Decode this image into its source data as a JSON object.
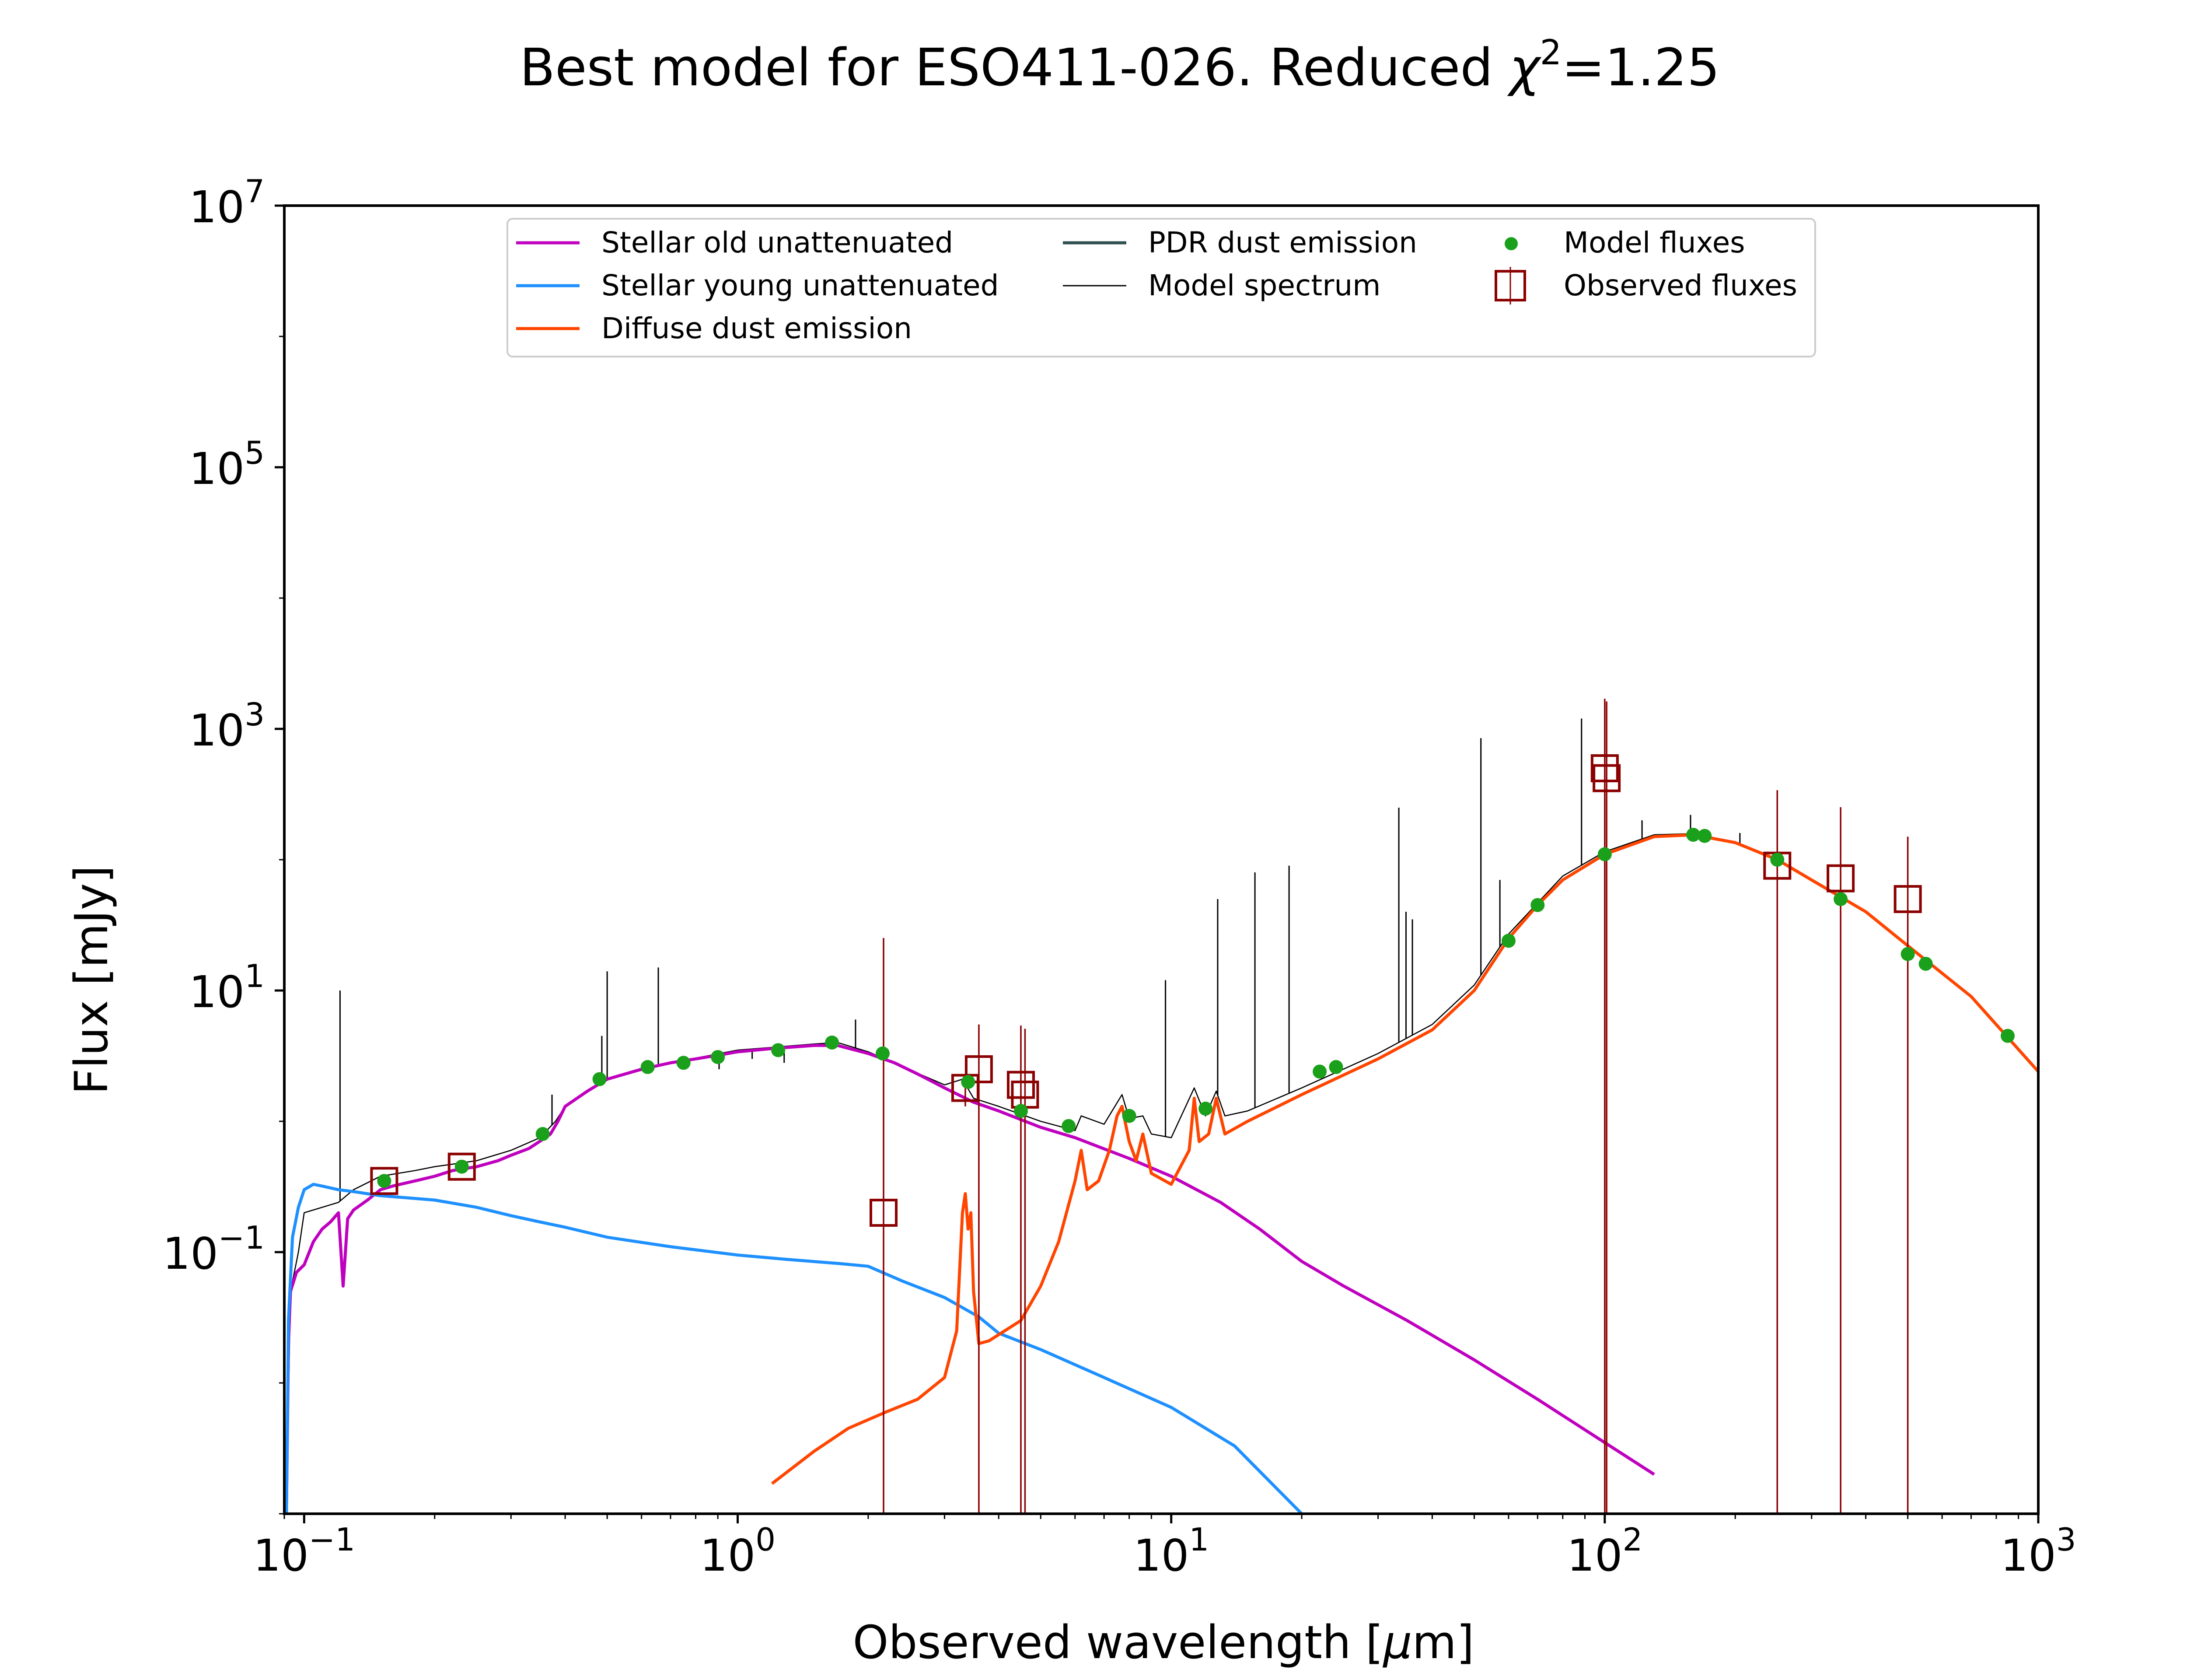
{
  "chart_data": {
    "type": "line",
    "title": "Best model for ESO411-026. Reduced χ²=1.25",
    "title_parts": {
      "prefix": "Best model for ESO411-026. Reduced ",
      "chi": "χ",
      "sup": "2",
      "suffix": "=1.25"
    },
    "xlabel": "Observed wavelength [μm]",
    "xlabel_parts": {
      "prefix": "Observed wavelength [",
      "mu": "μ",
      "suffix": "m]"
    },
    "ylabel": "Flux [mJy]",
    "x_scale": "log",
    "y_scale": "log",
    "xlim": [
      0.09,
      1000
    ],
    "ylim": [
      0.001,
      10000000
    ],
    "x_ticks": [
      {
        "value": 0.1,
        "base": "10",
        "exp": "−1"
      },
      {
        "value": 1,
        "base": "10",
        "exp": "0"
      },
      {
        "value": 10,
        "base": "10",
        "exp": "1"
      },
      {
        "value": 100,
        "base": "10",
        "exp": "2"
      },
      {
        "value": 1000,
        "base": "10",
        "exp": "3"
      }
    ],
    "y_ticks": [
      {
        "value": 0.1,
        "base": "10",
        "exp": "−1"
      },
      {
        "value": 10,
        "base": "10",
        "exp": "1"
      },
      {
        "value": 1000,
        "base": "10",
        "exp": "3"
      },
      {
        "value": 100000,
        "base": "10",
        "exp": "5"
      },
      {
        "value": 10000000,
        "base": "10",
        "exp": "7"
      }
    ],
    "grid": false,
    "legend_position": "top",
    "legend": [
      {
        "label": "Stellar old unattenuated",
        "color": "#bf00bf",
        "marker": "line"
      },
      {
        "label": "Stellar young unattenuated",
        "color": "#1e90ff",
        "marker": "line"
      },
      {
        "label": "Diffuse dust emission",
        "color": "#ff4500",
        "marker": "line"
      },
      {
        "label": "PDR dust emission",
        "color": "#2f4f4f",
        "marker": "line"
      },
      {
        "label": "Model spectrum",
        "color": "#000000",
        "marker": "thin-line"
      },
      {
        "label": "Model fluxes",
        "color": "#1aa01a",
        "marker": "dot"
      },
      {
        "label": "Observed fluxes",
        "color": "#8b0000",
        "marker": "square"
      }
    ],
    "series": [
      {
        "name": "Stellar old unattenuated",
        "color": "#bf00bf",
        "width": 7,
        "points": [
          [
            0.091,
            0.001
          ],
          [
            0.092,
            0.02
          ],
          [
            0.093,
            0.05
          ],
          [
            0.096,
            0.07
          ],
          [
            0.1,
            0.08
          ],
          [
            0.105,
            0.12
          ],
          [
            0.11,
            0.15
          ],
          [
            0.115,
            0.17
          ],
          [
            0.12,
            0.2
          ],
          [
            0.123,
            0.055
          ],
          [
            0.126,
            0.18
          ],
          [
            0.13,
            0.21
          ],
          [
            0.14,
            0.25
          ],
          [
            0.15,
            0.3
          ],
          [
            0.16,
            0.32
          ],
          [
            0.18,
            0.35
          ],
          [
            0.2,
            0.38
          ],
          [
            0.22,
            0.42
          ],
          [
            0.25,
            0.45
          ],
          [
            0.28,
            0.5
          ],
          [
            0.3,
            0.55
          ],
          [
            0.33,
            0.62
          ],
          [
            0.36,
            0.75
          ],
          [
            0.37,
            0.8
          ],
          [
            0.385,
            1.0
          ],
          [
            0.4,
            1.3
          ],
          [
            0.45,
            1.7
          ],
          [
            0.5,
            2.1
          ],
          [
            0.6,
            2.5
          ],
          [
            0.7,
            2.8
          ],
          [
            0.8,
            3.0
          ],
          [
            0.9,
            3.2
          ],
          [
            1.0,
            3.4
          ],
          [
            1.2,
            3.6
          ],
          [
            1.5,
            3.8
          ],
          [
            1.7,
            3.8
          ],
          [
            2.0,
            3.3
          ],
          [
            2.3,
            2.8
          ],
          [
            2.6,
            2.3
          ],
          [
            3.0,
            1.8
          ],
          [
            3.5,
            1.4
          ],
          [
            4.0,
            1.2
          ],
          [
            5.0,
            0.9
          ],
          [
            6.0,
            0.75
          ],
          [
            8.0,
            0.52
          ],
          [
            10.0,
            0.38
          ],
          [
            13.0,
            0.24
          ],
          [
            16.0,
            0.15
          ],
          [
            20.0,
            0.085
          ],
          [
            25.0,
            0.055
          ],
          [
            35.0,
            0.03
          ],
          [
            50.0,
            0.015
          ],
          [
            70.0,
            0.0075
          ],
          [
            100.0,
            0.0035
          ],
          [
            130.0,
            0.002
          ]
        ]
      },
      {
        "name": "Stellar young unattenuated",
        "color": "#1e90ff",
        "width": 7,
        "points": [
          [
            0.091,
            0.001
          ],
          [
            0.092,
            0.03
          ],
          [
            0.094,
            0.13
          ],
          [
            0.097,
            0.22
          ],
          [
            0.1,
            0.3
          ],
          [
            0.105,
            0.33
          ],
          [
            0.11,
            0.32
          ],
          [
            0.12,
            0.3
          ],
          [
            0.13,
            0.29
          ],
          [
            0.15,
            0.27
          ],
          [
            0.2,
            0.25
          ],
          [
            0.25,
            0.22
          ],
          [
            0.3,
            0.19
          ],
          [
            0.35,
            0.17
          ],
          [
            0.4,
            0.155
          ],
          [
            0.5,
            0.13
          ],
          [
            0.7,
            0.11
          ],
          [
            1.0,
            0.095
          ],
          [
            1.3,
            0.088
          ],
          [
            1.7,
            0.082
          ],
          [
            2.0,
            0.078
          ],
          [
            2.4,
            0.06
          ],
          [
            3.0,
            0.045
          ],
          [
            3.6,
            0.032
          ],
          [
            4.0,
            0.024
          ],
          [
            5.0,
            0.018
          ],
          [
            7.0,
            0.011
          ],
          [
            10.0,
            0.0065
          ],
          [
            14.0,
            0.0033
          ],
          [
            20.0,
            0.001
          ]
        ]
      },
      {
        "name": "Diffuse dust emission",
        "color": "#ff4500",
        "width": 7,
        "points": [
          [
            1.2,
            0.0017
          ],
          [
            1.5,
            0.003
          ],
          [
            1.8,
            0.0045
          ],
          [
            2.2,
            0.006
          ],
          [
            2.6,
            0.0075
          ],
          [
            3.0,
            0.011
          ],
          [
            3.2,
            0.025
          ],
          [
            3.3,
            0.2
          ],
          [
            3.35,
            0.28
          ],
          [
            3.4,
            0.15
          ],
          [
            3.45,
            0.2
          ],
          [
            3.5,
            0.05
          ],
          [
            3.6,
            0.02
          ],
          [
            3.8,
            0.021
          ],
          [
            4.5,
            0.03
          ],
          [
            5.0,
            0.055
          ],
          [
            5.5,
            0.12
          ],
          [
            6.0,
            0.35
          ],
          [
            6.2,
            0.6
          ],
          [
            6.4,
            0.3
          ],
          [
            6.8,
            0.35
          ],
          [
            7.2,
            0.6
          ],
          [
            7.5,
            1.1
          ],
          [
            7.7,
            1.3
          ],
          [
            8.0,
            0.7
          ],
          [
            8.3,
            0.5
          ],
          [
            8.6,
            0.8
          ],
          [
            9.0,
            0.4
          ],
          [
            10.0,
            0.33
          ],
          [
            11.0,
            0.6
          ],
          [
            11.3,
            1.5
          ],
          [
            11.6,
            0.7
          ],
          [
            12.2,
            0.8
          ],
          [
            12.7,
            1.5
          ],
          [
            13.3,
            0.8
          ],
          [
            15.0,
            1.0
          ],
          [
            20.0,
            1.6
          ],
          [
            30.0,
            3.0
          ],
          [
            40.0,
            5.0
          ],
          [
            50.0,
            10.0
          ],
          [
            60.0,
            25.0
          ],
          [
            70.0,
            45.0
          ],
          [
            80.0,
            70.0
          ],
          [
            100.0,
            110.0
          ],
          [
            130.0,
            150.0
          ],
          [
            160.0,
            155.0
          ],
          [
            200.0,
            135.0
          ],
          [
            250.0,
            100.0
          ],
          [
            300.0,
            70.0
          ],
          [
            400.0,
            40.0
          ],
          [
            500.0,
            22.0
          ],
          [
            700.0,
            9.0
          ],
          [
            1000.0,
            2.4
          ]
        ]
      },
      {
        "name": "Model spectrum",
        "color": "#000000",
        "width": 2.6,
        "points": [
          [
            0.091,
            0.001
          ],
          [
            0.093,
            0.05
          ],
          [
            0.097,
            0.1
          ],
          [
            0.1,
            0.2
          ],
          [
            0.11,
            0.22
          ],
          [
            0.12,
            0.24
          ],
          [
            0.13,
            0.3
          ],
          [
            0.15,
            0.38
          ],
          [
            0.18,
            0.42
          ],
          [
            0.2,
            0.45
          ],
          [
            0.25,
            0.5
          ],
          [
            0.3,
            0.6
          ],
          [
            0.35,
            0.75
          ],
          [
            0.38,
            1.0
          ],
          [
            0.4,
            1.3
          ],
          [
            0.5,
            2.1
          ],
          [
            0.7,
            2.8
          ],
          [
            1.0,
            3.5
          ],
          [
            1.5,
            3.9
          ],
          [
            1.7,
            4.0
          ],
          [
            2.0,
            3.4
          ],
          [
            3.0,
            1.9
          ],
          [
            3.3,
            2.1
          ],
          [
            3.5,
            1.5
          ],
          [
            4.0,
            1.3
          ],
          [
            5.0,
            1.0
          ],
          [
            6.0,
            0.85
          ],
          [
            6.2,
            1.1
          ],
          [
            7.0,
            0.95
          ],
          [
            7.7,
            1.6
          ],
          [
            8.0,
            1.05
          ],
          [
            8.6,
            1.1
          ],
          [
            9.0,
            0.8
          ],
          [
            10.0,
            0.75
          ],
          [
            11.3,
            1.8
          ],
          [
            12.0,
            1.1
          ],
          [
            12.7,
            1.7
          ],
          [
            13.3,
            1.1
          ],
          [
            15.0,
            1.2
          ],
          [
            20.0,
            1.8
          ],
          [
            30.0,
            3.3
          ],
          [
            40.0,
            5.5
          ],
          [
            50.0,
            11.0
          ],
          [
            60.0,
            27.0
          ],
          [
            80.0,
            75.0
          ],
          [
            100.0,
            115.0
          ],
          [
            130.0,
            155.0
          ],
          [
            160.0,
            158.0
          ],
          [
            200.0,
            137.0
          ],
          [
            250.0,
            101.0
          ],
          [
            300.0,
            71.0
          ],
          [
            400.0,
            40.0
          ],
          [
            500.0,
            22.0
          ],
          [
            700.0,
            9.0
          ],
          [
            1000.0,
            2.4
          ]
        ],
        "emission_lines": [
          [
            0.121,
            10.0
          ],
          [
            0.373,
            1.6
          ],
          [
            0.486,
            4.5
          ],
          [
            0.5,
            14.0
          ],
          [
            0.656,
            15.0
          ],
          [
            0.906,
            2.5
          ],
          [
            1.08,
            3.0
          ],
          [
            1.28,
            2.8
          ],
          [
            1.87,
            6.0
          ],
          [
            9.7,
            12.0
          ],
          [
            12.8,
            50.0
          ],
          [
            15.6,
            80.0
          ],
          [
            18.7,
            90.0
          ],
          [
            33.5,
            250.0
          ],
          [
            34.8,
            40.0
          ],
          [
            36.0,
            35.0
          ],
          [
            51.8,
            850.0
          ],
          [
            57.3,
            70.0
          ],
          [
            88.4,
            1200.0
          ],
          [
            121.9,
            200.0
          ],
          [
            157.7,
            220.0
          ],
          [
            205.0,
            160.0
          ]
        ]
      }
    ],
    "model_fluxes": [
      [
        0.153,
        0.35
      ],
      [
        0.231,
        0.45
      ],
      [
        0.355,
        0.8
      ],
      [
        0.48,
        2.1
      ],
      [
        0.62,
        2.6
      ],
      [
        0.75,
        2.8
      ],
      [
        0.9,
        3.1
      ],
      [
        1.24,
        3.5
      ],
      [
        1.65,
        4.0
      ],
      [
        2.16,
        3.3
      ],
      [
        3.4,
        2.0
      ],
      [
        4.5,
        1.2
      ],
      [
        5.8,
        0.92
      ],
      [
        8.0,
        1.1
      ],
      [
        12.0,
        1.25
      ],
      [
        22.0,
        2.4
      ],
      [
        24.0,
        2.6
      ],
      [
        60.0,
        24.0
      ],
      [
        70.0,
        45.0
      ],
      [
        100.0,
        110.0
      ],
      [
        160.0,
        155.0
      ],
      [
        170.0,
        152.0
      ],
      [
        250.0,
        100.0
      ],
      [
        350.0,
        50.0
      ],
      [
        500.0,
        19.0
      ],
      [
        550.0,
        16.0
      ],
      [
        850.0,
        4.5
      ]
    ],
    "observed_fluxes": [
      {
        "x": 0.153,
        "y": 0.35,
        "err": 0.04,
        "err_visible": false
      },
      {
        "x": 0.231,
        "y": 0.45,
        "err": 0.05,
        "err_visible": false
      },
      {
        "x": 2.17,
        "y": 0.2,
        "err": 25,
        "err_visible": true
      },
      {
        "x": 3.35,
        "y": 1.8,
        "err": 0.5,
        "err_visible": true
      },
      {
        "x": 3.6,
        "y": 2.5,
        "err": 3.0,
        "err_visible": true
      },
      {
        "x": 4.5,
        "y": 1.9,
        "err": 3.5,
        "err_visible": true
      },
      {
        "x": 4.6,
        "y": 1.6,
        "err": 3.5,
        "err_visible": true
      },
      {
        "x": 100.0,
        "y": 500.0,
        "err": 1200,
        "err_visible": true
      },
      {
        "x": 101.0,
        "y": 420.0,
        "err": 1200,
        "err_visible": true
      },
      {
        "x": 250.0,
        "y": 90.0,
        "err": 250,
        "err_visible": true
      },
      {
        "x": 350.0,
        "y": 72.0,
        "err": 180,
        "err_visible": true
      },
      {
        "x": 500.0,
        "y": 50.0,
        "err": 100,
        "err_visible": true
      }
    ]
  }
}
